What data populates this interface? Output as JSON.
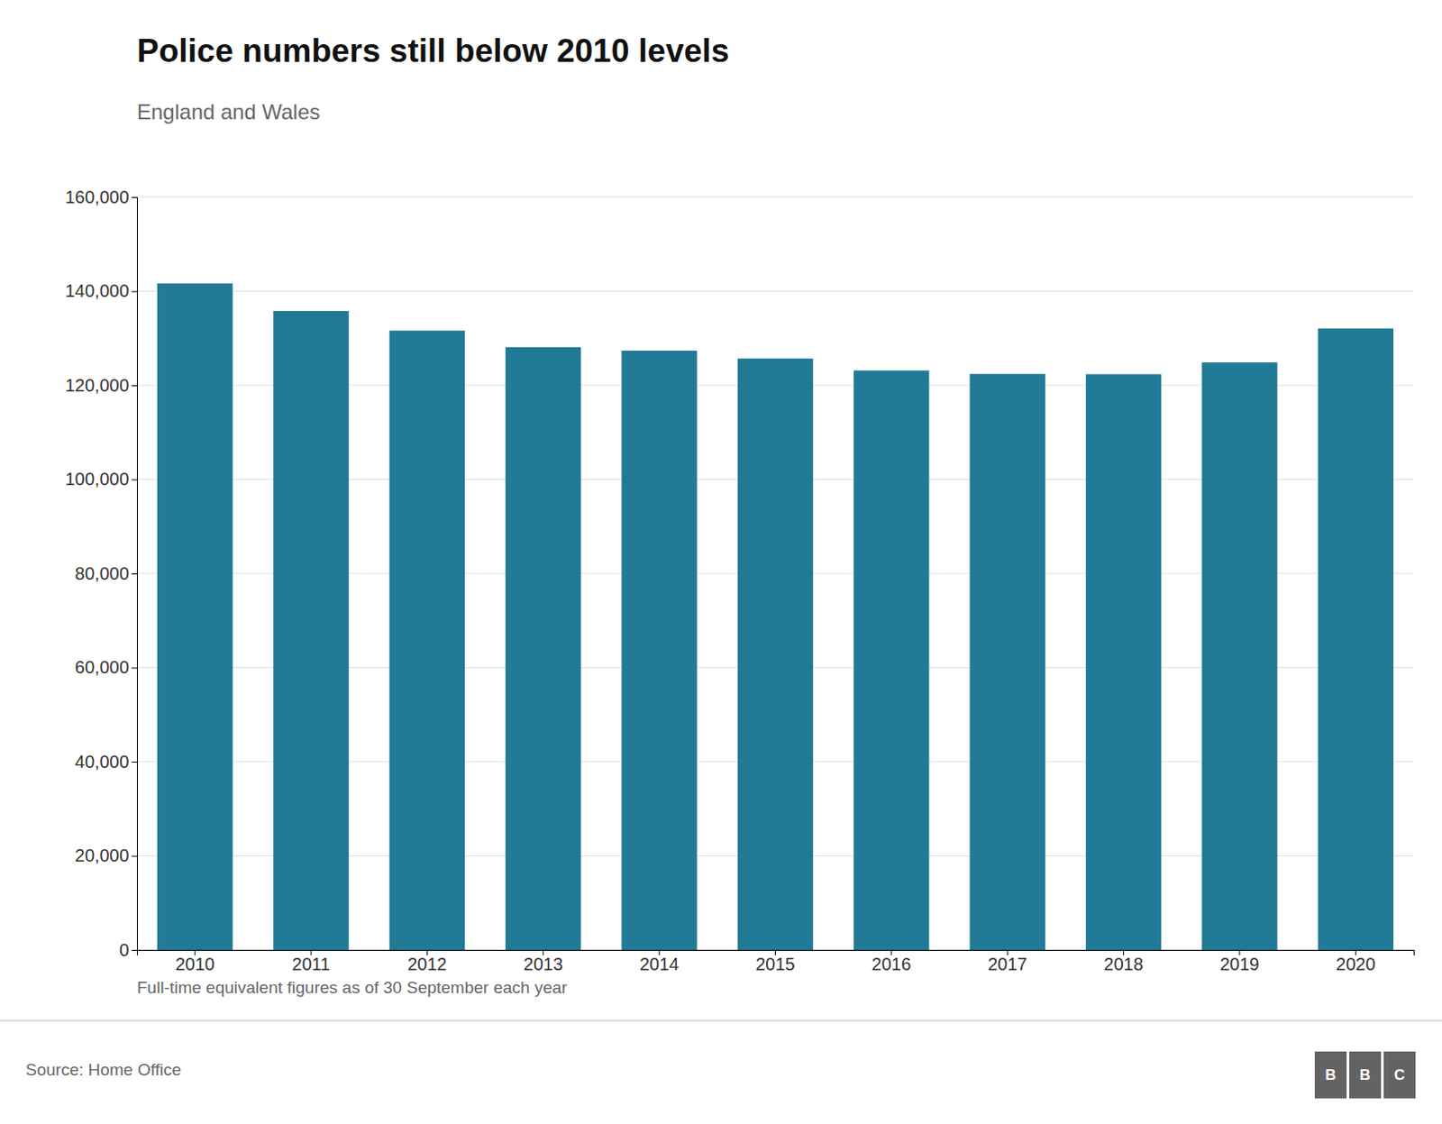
{
  "chart_data": {
    "type": "bar",
    "title": "Police numbers still below 2010 levels",
    "subtitle": "England and Wales",
    "footnote": "Full-time equivalent figures as of 30 September each year",
    "source": "Source: Home Office",
    "annotations": [
      "B",
      "B",
      "C"
    ],
    "categories": [
      "2010",
      "2011",
      "2012",
      "2013",
      "2014",
      "2015",
      "2016",
      "2017",
      "2018",
      "2019",
      "2020"
    ],
    "values": [
      141651,
      135781,
      131607,
      128088,
      127362,
      125685,
      123142,
      122404,
      122349,
      124856,
      132077
    ],
    "color": "#217a96",
    "ylim": [
      0,
      160000
    ],
    "yticks": [
      0,
      {
        "value": 20000,
        "label": "20,000"
      },
      {
        "value": 40000,
        "label": "40,000"
      },
      {
        "value": 60000,
        "label": "60,000"
      },
      {
        "value": 80000,
        "label": "80,000"
      },
      {
        "value": 100000,
        "label": "100,000"
      },
      {
        "value": 120000,
        "label": "120,000"
      },
      {
        "value": 140000,
        "label": "140,000"
      },
      {
        "value": 160000,
        "label": "160,000"
      }
    ],
    "grid": true
  }
}
